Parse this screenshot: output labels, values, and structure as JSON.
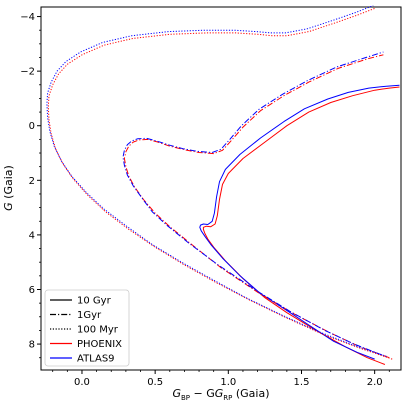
{
  "chart_data": {
    "type": "line",
    "title": "",
    "xlabel_main": "G",
    "xlabel_sub1": "BP",
    "xlabel_mid": " − G",
    "xlabel_sub2": "RP",
    "xlabel_tail": " (Gaia)",
    "ylabel_italic": "G",
    "ylabel_tail": " (Gaia)",
    "xlim": [
      -0.28,
      2.18
    ],
    "ylim": [
      -4.35,
      8.95
    ],
    "y_inverted": true,
    "xticks": [
      0.0,
      0.5,
      1.0,
      1.5,
      2.0
    ],
    "xtick_labels": [
      "0.0",
      "0.5",
      "1.0",
      "1.5",
      "2.0"
    ],
    "yticks": [
      -4,
      -2,
      0,
      2,
      4,
      6,
      8
    ],
    "ytick_labels": [
      "−4",
      "−2",
      "0",
      "2",
      "4",
      "6",
      "8"
    ],
    "grid": false,
    "legend_position": "lower-left",
    "legend": [
      {
        "label": "10 Gyr",
        "kind": "style",
        "dash": "solid",
        "color": "#000000"
      },
      {
        "label": "1Gyr",
        "kind": "style",
        "dash": "dashdot",
        "color": "#000000"
      },
      {
        "label": "100 Myr",
        "kind": "style",
        "dash": "dotted",
        "color": "#000000"
      },
      {
        "label": "PHOENIX",
        "kind": "model",
        "dash": "solid",
        "color": "#ff0000"
      },
      {
        "label": "ATLAS9",
        "kind": "model",
        "dash": "solid",
        "color": "#0000ff"
      }
    ],
    "series": [
      {
        "age": "10 Gyr",
        "model": "PHOENIX",
        "color": "#ff0000",
        "dash": "solid",
        "x": [
          2.07,
          1.95,
          1.8,
          1.6,
          1.4,
          1.25,
          1.1,
          0.98,
          0.9,
          0.86,
          0.84,
          0.83,
          0.83,
          0.85,
          0.88,
          0.91,
          0.925,
          0.94,
          0.96,
          1.0,
          1.1,
          1.25,
          1.4,
          1.55,
          1.7,
          1.85,
          2.0,
          2.1,
          2.17
        ],
        "y": [
          8.75,
          8.5,
          8.1,
          7.5,
          6.85,
          6.3,
          5.6,
          4.95,
          4.45,
          4.15,
          3.95,
          3.8,
          3.72,
          3.68,
          3.7,
          3.6,
          3.3,
          2.7,
          2.15,
          1.75,
          1.2,
          0.6,
          0.0,
          -0.5,
          -0.85,
          -1.1,
          -1.3,
          -1.38,
          -1.42
        ]
      },
      {
        "age": "10 Gyr",
        "model": "ATLAS9",
        "color": "#0000ff",
        "dash": "solid",
        "x": [
          2.0,
          1.88,
          1.72,
          1.55,
          1.38,
          1.22,
          1.08,
          0.96,
          0.88,
          0.84,
          0.815,
          0.805,
          0.81,
          0.83,
          0.86,
          0.89,
          0.905,
          0.92,
          0.94,
          0.98,
          1.08,
          1.22,
          1.38,
          1.52,
          1.68,
          1.82,
          1.96,
          2.08,
          2.17
        ],
        "y": [
          8.55,
          8.3,
          7.9,
          7.3,
          6.7,
          6.15,
          5.5,
          4.85,
          4.35,
          4.05,
          3.85,
          3.72,
          3.64,
          3.6,
          3.62,
          3.5,
          3.2,
          2.6,
          2.05,
          1.6,
          1.05,
          0.45,
          -0.15,
          -0.62,
          -0.98,
          -1.22,
          -1.38,
          -1.45,
          -1.48
        ]
      },
      {
        "age": "1Gyr",
        "model": "PHOENIX",
        "color": "#ff0000",
        "dash": "dashdot",
        "x": [
          2.1,
          1.9,
          1.7,
          1.45,
          1.2,
          0.95,
          0.75,
          0.6,
          0.5,
          0.42,
          0.36,
          0.32,
          0.3,
          0.29,
          0.3,
          0.32,
          0.35,
          0.39,
          0.45,
          0.52,
          0.6,
          0.7,
          0.8,
          0.9,
          0.96,
          1.02,
          1.1,
          1.22,
          1.38,
          1.55,
          1.75,
          1.95,
          2.06
        ],
        "y": [
          8.5,
          8.1,
          7.6,
          6.9,
          6.1,
          5.2,
          4.35,
          3.7,
          3.2,
          2.7,
          2.25,
          1.85,
          1.5,
          1.2,
          0.95,
          0.75,
          0.6,
          0.52,
          0.5,
          0.6,
          0.75,
          0.88,
          0.98,
          1.02,
          0.9,
          0.55,
          0.05,
          -0.55,
          -1.1,
          -1.6,
          -2.1,
          -2.45,
          -2.6
        ]
      },
      {
        "age": "1Gyr",
        "model": "ATLAS9",
        "color": "#0000ff",
        "dash": "dashdot",
        "x": [
          2.05,
          1.86,
          1.66,
          1.42,
          1.18,
          0.93,
          0.73,
          0.58,
          0.48,
          0.41,
          0.35,
          0.31,
          0.29,
          0.28,
          0.29,
          0.31,
          0.34,
          0.38,
          0.44,
          0.51,
          0.59,
          0.69,
          0.79,
          0.89,
          0.95,
          1.01,
          1.09,
          1.21,
          1.37,
          1.54,
          1.74,
          1.94,
          2.06
        ],
        "y": [
          8.4,
          8.0,
          7.5,
          6.8,
          6.0,
          5.1,
          4.3,
          3.65,
          3.15,
          2.65,
          2.2,
          1.8,
          1.45,
          1.15,
          0.9,
          0.7,
          0.56,
          0.48,
          0.46,
          0.56,
          0.7,
          0.84,
          0.94,
          0.98,
          0.86,
          0.5,
          0.0,
          -0.6,
          -1.15,
          -1.65,
          -2.15,
          -2.5,
          -2.7
        ]
      },
      {
        "age": "100 Myr",
        "model": "PHOENIX",
        "color": "#ff0000",
        "dash": "dotted",
        "x": [
          2.12,
          1.9,
          1.65,
          1.4,
          1.15,
          0.9,
          0.7,
          0.5,
          0.32,
          0.16,
          0.04,
          -0.06,
          -0.13,
          -0.18,
          -0.21,
          -0.225,
          -0.23,
          -0.225,
          -0.2,
          -0.16,
          -0.1,
          0.0,
          0.15,
          0.35,
          0.6,
          0.85,
          1.05,
          1.2,
          1.3,
          1.4,
          1.55,
          1.72,
          1.88,
          2.0
        ],
        "y": [
          8.55,
          8.15,
          7.65,
          7.05,
          6.4,
          5.7,
          5.1,
          4.45,
          3.8,
          3.15,
          2.55,
          1.95,
          1.4,
          0.85,
          0.3,
          -0.2,
          -0.7,
          -1.1,
          -1.5,
          -1.9,
          -2.25,
          -2.6,
          -2.95,
          -3.2,
          -3.35,
          -3.4,
          -3.4,
          -3.35,
          -3.3,
          -3.3,
          -3.45,
          -3.75,
          -4.05,
          -4.3
        ]
      },
      {
        "age": "100 Myr",
        "model": "ATLAS9",
        "color": "#0000ff",
        "dash": "dotted",
        "x": [
          2.08,
          1.86,
          1.62,
          1.37,
          1.12,
          0.88,
          0.68,
          0.48,
          0.31,
          0.15,
          0.03,
          -0.07,
          -0.14,
          -0.19,
          -0.22,
          -0.235,
          -0.24,
          -0.235,
          -0.21,
          -0.17,
          -0.11,
          -0.01,
          0.14,
          0.34,
          0.59,
          0.84,
          1.04,
          1.19,
          1.29,
          1.39,
          1.54,
          1.71,
          1.87,
          1.99
        ],
        "y": [
          8.45,
          8.05,
          7.55,
          6.95,
          6.3,
          5.6,
          5.0,
          4.35,
          3.7,
          3.05,
          2.45,
          1.85,
          1.3,
          0.75,
          0.2,
          -0.3,
          -0.8,
          -1.2,
          -1.6,
          -2.0,
          -2.35,
          -2.7,
          -3.05,
          -3.3,
          -3.45,
          -3.5,
          -3.5,
          -3.45,
          -3.4,
          -3.4,
          -3.55,
          -3.85,
          -4.15,
          -4.4
        ]
      }
    ]
  }
}
